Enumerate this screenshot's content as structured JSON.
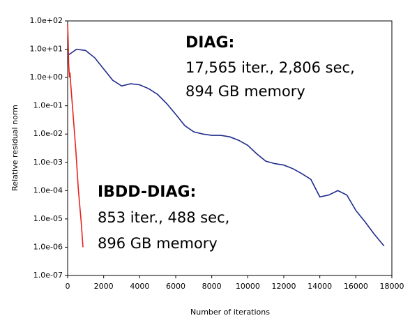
{
  "chart_data": {
    "type": "line",
    "yscale": "log",
    "y_label": "Relative residual norm",
    "x_label": "Number of iterations",
    "xlim": [
      0,
      18000
    ],
    "xticks": [
      0,
      2000,
      4000,
      6000,
      8000,
      10000,
      12000,
      14000,
      16000,
      18000
    ],
    "ylim": [
      1e-07,
      100
    ],
    "yticks": [
      {
        "value": 1e-07,
        "label": "1.0e-07"
      },
      {
        "value": 1e-06,
        "label": "1.0e-06"
      },
      {
        "value": 1e-05,
        "label": "1.0e-05"
      },
      {
        "value": 0.0001,
        "label": "1.0e-04"
      },
      {
        "value": 0.001,
        "label": "1.0e-03"
      },
      {
        "value": 0.01,
        "label": "1.0e-02"
      },
      {
        "value": 0.1,
        "label": "1.0e-01"
      },
      {
        "value": 1,
        "label": "1.0e+00"
      },
      {
        "value": 10,
        "label": "1.0e+01"
      },
      {
        "value": 100,
        "label": "1.0e+02"
      }
    ],
    "series": [
      {
        "color": "#1f2a8c",
        "x": [
          0,
          500,
          1000,
          1500,
          2000,
          2500,
          3000,
          3500,
          4000,
          4500,
          5000,
          5500,
          6000,
          6500,
          7000,
          7500,
          8000,
          8500,
          9000,
          9500,
          10000,
          10500,
          11000,
          11500,
          12000,
          12500,
          13000,
          13500,
          14000,
          14500,
          15000,
          15500,
          16000,
          16500,
          17000,
          17565
        ],
        "values": [
          6,
          10,
          9,
          5,
          2,
          0.8,
          0.5,
          0.6,
          0.55,
          0.4,
          0.25,
          0.12,
          0.05,
          0.02,
          0.012,
          0.01,
          0.009,
          0.009,
          0.008,
          0.006,
          0.004,
          0.002,
          0.0011,
          0.0009,
          0.0008,
          0.0006,
          0.0004,
          0.00025,
          6e-05,
          7e-05,
          0.0001,
          7e-05,
          2e-05,
          8e-06,
          3e-06,
          1.1e-06
        ]
      },
      {
        "color": "#e8231c",
        "x": [
          0,
          30,
          60,
          100,
          130,
          170,
          300,
          450,
          600,
          750,
          853
        ],
        "values": [
          80,
          20,
          3,
          1,
          1.5,
          0.6,
          0.05,
          0.003,
          0.0001,
          8e-06,
          1e-06
        ]
      }
    ],
    "annotations": [
      "DIAG:",
      "17,565 iter., 2,806 sec,",
      "894 GB memory",
      "IBDD-DIAG:",
      "853 iter., 488 sec,",
      "896 GB memory"
    ]
  }
}
